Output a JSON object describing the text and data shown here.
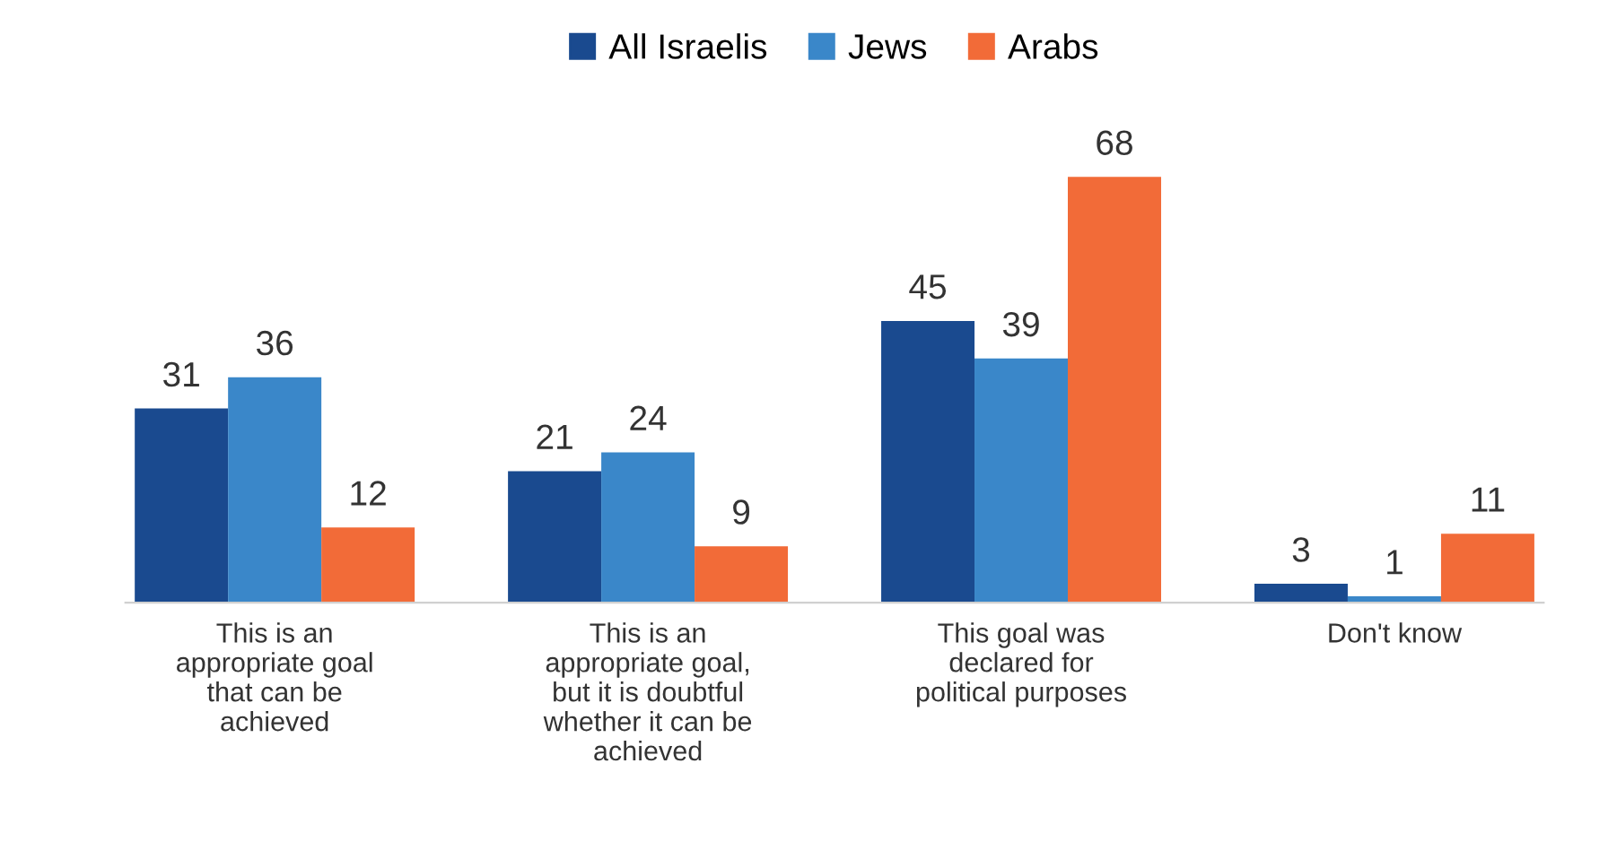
{
  "chart_data": {
    "type": "bar",
    "categories": [
      "This is an\nappropriate goal\nthat can be\nachieved",
      "This is an\nappropriate goal,\nbut it is doubtful\nwhether it can be\nachieved",
      "This goal was\ndeclared for\npolitical purposes",
      "Don't know"
    ],
    "series": [
      {
        "name": "All Israelis",
        "color": "#1a4a8f",
        "values": [
          31,
          21,
          45,
          3
        ]
      },
      {
        "name": "Jews",
        "color": "#3a87c9",
        "values": [
          36,
          24,
          39,
          1
        ]
      },
      {
        "name": "Arabs",
        "color": "#f26b38",
        "values": [
          12,
          9,
          68,
          11
        ]
      }
    ],
    "data_labels": true,
    "legend": "top",
    "grid": false,
    "tick_labels": "x"
  }
}
